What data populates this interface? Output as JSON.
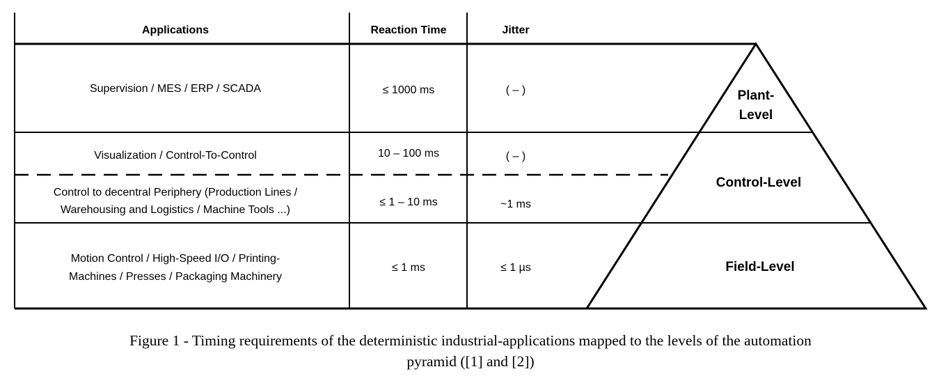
{
  "table": {
    "headers": [
      "Applications",
      "Reaction Time",
      "Jitter"
    ],
    "rows": [
      {
        "application": [
          "Supervision / MES / ERP / SCADA"
        ],
        "reaction_time": "≤ 1000 ms",
        "jitter": "( – )"
      },
      {
        "application": [
          "Visualization / Control-To-Control"
        ],
        "reaction_time": "10 – 100 ms",
        "jitter": "( – )"
      },
      {
        "application": [
          "Control to decentral Periphery (Production Lines /",
          "Warehousing and Logistics / Machine Tools ...)"
        ],
        "reaction_time": "≤ 1 – 10 ms",
        "jitter": "~1 ms"
      },
      {
        "application": [
          "Motion Control  /  High-Speed I/O  /  Printing-",
          "Machines / Presses / Packaging Machinery"
        ],
        "reaction_time": "≤ 1 ms",
        "jitter": "≤ 1 µs"
      }
    ]
  },
  "pyramid": {
    "plant_level": [
      "Plant-",
      "Level"
    ],
    "control_level": "Control-Level",
    "field_level": "Field-Level"
  },
  "caption": [
    "Figure 1 - Timing requirements of the deterministic industrial-applications mapped to the levels of the automation",
    "pyramid ([1] and [2])"
  ]
}
